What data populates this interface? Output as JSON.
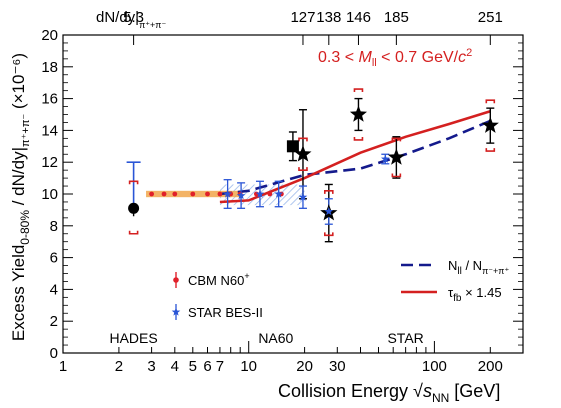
{
  "chart_data": {
    "type": "scatter",
    "xscale": "log",
    "xlim": [
      1,
      300
    ],
    "ylim": [
      0,
      20
    ],
    "xlabel": "Collision Energy",
    "xlabel_sqrt": "s",
    "xlabel_sub": "NN",
    "xlabel_unit": " [GeV]",
    "ylabel_prefix": "Excess Yield",
    "ylabel_sub": "0-80%",
    "ylabel_mid": " / dN/dy|",
    "ylabel_sub2": "π⁺+π⁻",
    "ylabel_suffix": " (×10⁻⁶)",
    "x_ticks": [
      1,
      2,
      3,
      4,
      5,
      6,
      7,
      10,
      20,
      30,
      100,
      200
    ],
    "y_ticks": [
      0,
      2,
      4,
      6,
      8,
      10,
      12,
      14,
      16,
      18,
      20
    ],
    "top_axis": {
      "label": "dN/dy|",
      "label_sub": "π⁺+π⁻",
      "ticks": [
        {
          "x": 2.4,
          "label": "5.3"
        },
        {
          "x": 19.6,
          "label": "127"
        },
        {
          "x": 27,
          "label": "138"
        },
        {
          "x": 39,
          "label": "146"
        },
        {
          "x": 62.4,
          "label": "185"
        },
        {
          "x": 200,
          "label": "251"
        }
      ]
    },
    "annotation": {
      "pre": "0.3 < ",
      "M": "M",
      "Msub": "ll",
      "post": " < 0.7 GeV/",
      "c": "c",
      "sup": "2"
    },
    "regions": [
      {
        "x": 2.4,
        "label": "HADES"
      },
      {
        "x": 14,
        "label": "NA60"
      },
      {
        "x": 70,
        "label": "STAR"
      }
    ],
    "series": [
      {
        "name": "",
        "marker": "circle",
        "color": "#000000",
        "points": [
          {
            "x": 2.4,
            "y": 9.1,
            "err": 0.5,
            "sys_hi": 10.8,
            "sys_lo": 7.5,
            "stat_hi": 12.0,
            "stat_lo": 9.1
          }
        ]
      },
      {
        "name": "",
        "marker": "square",
        "color": "#000000",
        "points": [
          {
            "x": 17.3,
            "y": 13.0,
            "err": 0.9
          }
        ]
      },
      {
        "name": "",
        "marker": "star",
        "color": "#000000",
        "points": [
          {
            "x": 19.6,
            "y": 12.5,
            "err": 2.8,
            "sys": 1.0
          },
          {
            "x": 27,
            "y": 8.8,
            "err": 1.8,
            "sys": 1.4
          },
          {
            "x": 39,
            "y": 15.0,
            "err": 1.0,
            "sys": 1.6
          },
          {
            "x": 62.4,
            "y": 12.3,
            "err": 1.3,
            "sys": 1.2
          },
          {
            "x": 200,
            "y": 14.3,
            "err": 1.1,
            "sys": 1.6
          }
        ]
      },
      {
        "name": "CBM  N60",
        "name_sup": "+",
        "marker": "dot",
        "color": "#e0202a",
        "points": [
          {
            "x": 3,
            "y": 10.0,
            "err": 0.1
          },
          {
            "x": 3.5,
            "y": 10.0,
            "err": 0.1
          },
          {
            "x": 4,
            "y": 10.0,
            "err": 0.1
          },
          {
            "x": 5,
            "y": 10.0,
            "err": 0.1
          },
          {
            "x": 6,
            "y": 10.0,
            "err": 0.1
          },
          {
            "x": 7,
            "y": 10.0,
            "err": 0.1
          },
          {
            "x": 8,
            "y": 10.0,
            "err": 0.1
          },
          {
            "x": 9,
            "y": 10.0,
            "err": 0.1
          },
          {
            "x": 11,
            "y": 10.0,
            "err": 0.1
          },
          {
            "x": 13,
            "y": 10.0,
            "err": 0.1
          },
          {
            "x": 15,
            "y": 10.0,
            "err": 0.1
          }
        ]
      },
      {
        "name": "STAR BES-II",
        "marker": "bluestar",
        "color": "#2a55d6",
        "points": [
          {
            "x": 7.7,
            "y": 10.0,
            "err": 0.9
          },
          {
            "x": 9.1,
            "y": 9.9,
            "err": 0.8
          },
          {
            "x": 11.5,
            "y": 10.0,
            "err": 0.8
          },
          {
            "x": 14.5,
            "y": 10.0,
            "err": 0.8
          },
          {
            "x": 19.6,
            "y": 9.8,
            "err": 0.7
          },
          {
            "x": 27,
            "y": 8.9,
            "err": 0.8
          },
          {
            "x": 54.4,
            "y": 12.2,
            "err": 0.3
          }
        ]
      },
      {
        "name": "N",
        "name_sub": "ll",
        "name_mid": " / N",
        "name_sub2": "π⁻+π⁺",
        "style": "dashed",
        "color": "#141a8c",
        "line": [
          {
            "x": 7.0,
            "y": 10.0
          },
          {
            "x": 10,
            "y": 10.2
          },
          {
            "x": 20,
            "y": 11.2
          },
          {
            "x": 40,
            "y": 11.6
          },
          {
            "x": 70,
            "y": 12.5
          },
          {
            "x": 120,
            "y": 13.5
          },
          {
            "x": 200,
            "y": 14.6
          }
        ]
      },
      {
        "name": "τ",
        "name_sub": "fb",
        "name_mid": " × 1.45",
        "style": "solid",
        "color": "#d42020",
        "line": [
          {
            "x": 7.0,
            "y": 9.5
          },
          {
            "x": 10,
            "y": 9.6
          },
          {
            "x": 20,
            "y": 11.0
          },
          {
            "x": 40,
            "y": 12.6
          },
          {
            "x": 70,
            "y": 13.6
          },
          {
            "x": 120,
            "y": 14.4
          },
          {
            "x": 200,
            "y": 15.2
          }
        ]
      }
    ],
    "bands": [
      {
        "name": "CBM band",
        "color": "#f0a040",
        "x0": 2.8,
        "x1": 9.0,
        "y0": 9.8,
        "y1": 10.2
      },
      {
        "name": "STAR BES-II band",
        "color": "#9fb8e8",
        "x0": 7.0,
        "x1": 20.0,
        "y0": 9.3,
        "y1": 10.6
      }
    ]
  }
}
